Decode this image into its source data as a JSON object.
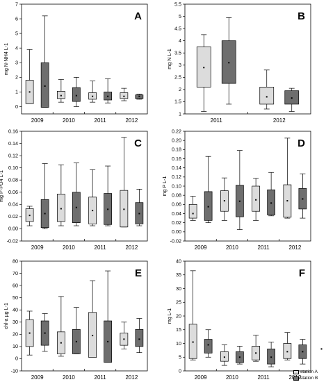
{
  "colors": {
    "station_A": "#dcdcdc",
    "station_B": "#6e6e6e",
    "frame": "#000000"
  },
  "legend": {
    "station_A": "station A",
    "station_B": "station B"
  },
  "chart_data": [
    {
      "type": "box",
      "panel": "A",
      "ylabel": "mg N-NH4 L-1",
      "ylim": [
        -0.5,
        7
      ],
      "yticks": [
        0,
        1,
        2,
        3,
        4,
        5,
        6,
        7
      ],
      "categories": [
        "2009",
        "2010",
        "2011",
        "2012"
      ],
      "series": [
        {
          "name": "station A",
          "boxes": [
            {
              "min": 0.2,
              "q1": 0.2,
              "median": 1.0,
              "q3": 1.8,
              "max": 3.9
            },
            {
              "min": 0.3,
              "q1": 0.55,
              "median": 0.75,
              "q3": 1.05,
              "max": 1.85
            },
            {
              "min": 0.3,
              "q1": 0.5,
              "median": 0.7,
              "q3": 0.95,
              "max": 1.75
            },
            {
              "min": 0.4,
              "q1": 0.55,
              "median": 0.7,
              "q3": 0.95,
              "max": 1.25
            }
          ]
        },
        {
          "name": "station B",
          "boxes": [
            {
              "min": -0.05,
              "q1": -0.05,
              "median": 1.4,
              "q3": 3.0,
              "max": 6.2
            },
            {
              "min": 0.0,
              "q1": 0.35,
              "median": 0.75,
              "q3": 1.3,
              "max": 2.0
            },
            {
              "min": 0.25,
              "q1": 0.45,
              "median": 0.7,
              "q3": 1.0,
              "max": 1.9
            },
            {
              "min": 0.5,
              "q1": 0.55,
              "median": 0.7,
              "q3": 0.8,
              "max": 0.85
            }
          ]
        }
      ]
    },
    {
      "type": "box",
      "panel": "B",
      "ylabel": "mg N L-1",
      "ylim": [
        1.0,
        5.5
      ],
      "yticks": [
        1.0,
        1.5,
        2.0,
        2.5,
        3.0,
        3.5,
        4.0,
        4.5,
        5.0,
        5.5
      ],
      "categories": [
        "2011",
        "2012"
      ],
      "series": [
        {
          "name": "station A",
          "boxes": [
            {
              "min": 1.1,
              "q1": 2.1,
              "median": 2.9,
              "q3": 3.75,
              "max": 4.25
            },
            {
              "min": 1.2,
              "q1": 1.4,
              "median": 1.7,
              "q3": 2.1,
              "max": 2.8
            }
          ]
        },
        {
          "name": "station B",
          "boxes": [
            {
              "min": 1.4,
              "q1": 2.25,
              "median": 3.1,
              "q3": 4.0,
              "max": 4.95
            },
            {
              "min": 1.1,
              "q1": 1.4,
              "median": 1.65,
              "q3": 1.95,
              "max": 2.05
            }
          ]
        }
      ]
    },
    {
      "type": "box",
      "panel": "C",
      "ylabel": "mg P-PO4 L-1",
      "ylim": [
        -0.02,
        0.16
      ],
      "yticks": [
        -0.02,
        0.0,
        0.02,
        0.04,
        0.06,
        0.08,
        0.1,
        0.12,
        0.14,
        0.16
      ],
      "ytick_labels": [
        "-0.02",
        "0.00",
        "0.02",
        "0.04",
        "0.06",
        "0.08",
        "0.10",
        "0.12",
        "0.14",
        "0.16"
      ],
      "categories": [
        "2009",
        "2010",
        "2011",
        "2012"
      ],
      "series": [
        {
          "name": "station A",
          "boxes": [
            {
              "min": 0.005,
              "q1": 0.012,
              "median": 0.022,
              "q3": 0.033,
              "max": 0.037
            },
            {
              "min": 0.005,
              "q1": 0.012,
              "median": 0.033,
              "q3": 0.057,
              "max": 0.105
            },
            {
              "min": 0.005,
              "q1": 0.008,
              "median": 0.03,
              "q3": 0.052,
              "max": 0.097
            },
            {
              "min": 0.003,
              "q1": 0.003,
              "median": 0.032,
              "q3": 0.063,
              "max": 0.15
            }
          ]
        },
        {
          "name": "station B",
          "boxes": [
            {
              "min": 0.0,
              "q1": 0.002,
              "median": 0.025,
              "q3": 0.048,
              "max": 0.107
            },
            {
              "min": 0.005,
              "q1": 0.01,
              "median": 0.035,
              "q3": 0.06,
              "max": 0.108
            },
            {
              "min": 0.005,
              "q1": 0.007,
              "median": 0.032,
              "q3": 0.058,
              "max": 0.103
            },
            {
              "min": 0.005,
              "q1": 0.008,
              "median": 0.025,
              "q3": 0.043,
              "max": 0.065
            }
          ]
        }
      ]
    },
    {
      "type": "box",
      "panel": "D",
      "ylabel": "mg P L-1",
      "ylim": [
        -0.02,
        0.22
      ],
      "yticks": [
        -0.02,
        0.0,
        0.02,
        0.04,
        0.06,
        0.08,
        0.1,
        0.12,
        0.14,
        0.16,
        0.18,
        0.2,
        0.22
      ],
      "ytick_labels": [
        "-0.02",
        "0.00",
        "0.02",
        "0.04",
        "0.06",
        "0.08",
        "0.10",
        "0.12",
        "0.14",
        "0.16",
        "0.18",
        "0.20",
        "0.22"
      ],
      "categories": [
        "2009",
        "2010",
        "2011",
        "2012"
      ],
      "series": [
        {
          "name": "station A",
          "boxes": [
            {
              "min": 0.025,
              "q1": 0.03,
              "median": 0.04,
              "q3": 0.06,
              "max": 0.078
            },
            {
              "min": 0.025,
              "q1": 0.045,
              "median": 0.068,
              "q3": 0.09,
              "max": 0.118
            },
            {
              "min": 0.025,
              "q1": 0.045,
              "median": 0.07,
              "q3": 0.1,
              "max": 0.117
            },
            {
              "min": 0.03,
              "q1": 0.032,
              "median": 0.068,
              "q3": 0.103,
              "max": 0.205
            }
          ]
        },
        {
          "name": "station B",
          "boxes": [
            {
              "min": 0.02,
              "q1": 0.025,
              "median": 0.055,
              "q3": 0.088,
              "max": 0.165
            },
            {
              "min": 0.005,
              "q1": 0.033,
              "median": 0.067,
              "q3": 0.102,
              "max": 0.178
            },
            {
              "min": 0.035,
              "q1": 0.037,
              "median": 0.063,
              "q3": 0.092,
              "max": 0.13
            },
            {
              "min": 0.03,
              "q1": 0.05,
              "median": 0.072,
              "q3": 0.095,
              "max": 0.127
            }
          ]
        }
      ]
    },
    {
      "type": "box",
      "panel": "E",
      "ylabel": "chl-a µg L-1",
      "ylim": [
        -10,
        80
      ],
      "yticks": [
        -10,
        0,
        10,
        20,
        30,
        40,
        50,
        60,
        70,
        80
      ],
      "categories": [
        "2009",
        "2010",
        "2011",
        "2012"
      ],
      "series": [
        {
          "name": "station A",
          "boxes": [
            {
              "min": 3,
              "q1": 10,
              "median": 21,
              "q3": 32,
              "max": 39
            },
            {
              "min": 2,
              "q1": 4,
              "median": 13,
              "q3": 22,
              "max": 51
            },
            {
              "min": 1,
              "q1": 1,
              "median": 19,
              "q3": 38,
              "max": 64
            },
            {
              "min": 8,
              "q1": 11,
              "median": 16,
              "q3": 21,
              "max": 30
            }
          ]
        },
        {
          "name": "station B",
          "boxes": [
            {
              "min": 6,
              "q1": 11,
              "median": 21,
              "q3": 31,
              "max": 37
            },
            {
              "min": 4,
              "q1": 4,
              "median": 14,
              "q3": 24,
              "max": 42
            },
            {
              "min": -3,
              "q1": -3,
              "median": 14,
              "q3": 31,
              "max": 72
            },
            {
              "min": 5,
              "q1": 10,
              "median": 16,
              "q3": 24,
              "max": 33
            }
          ]
        }
      ]
    },
    {
      "type": "box",
      "panel": "F",
      "ylabel": "mg L-1",
      "ylim": [
        0,
        40
      ],
      "yticks": [
        0,
        5,
        10,
        15,
        20,
        25,
        30,
        35,
        40
      ],
      "categories": [
        "2009",
        "2010",
        "2011",
        "2012"
      ],
      "series": [
        {
          "name": "station A",
          "boxes": [
            {
              "min": 4,
              "q1": 4.5,
              "median": 10.5,
              "q3": 17,
              "max": 36.5
            },
            {
              "min": 2,
              "q1": 3.5,
              "median": 5,
              "q3": 7,
              "max": 9.5
            },
            {
              "min": 3.5,
              "q1": 4,
              "median": 6.5,
              "q3": 9,
              "max": 13
            },
            {
              "min": 4,
              "q1": 4.5,
              "median": 7,
              "q3": 10,
              "max": 14
            }
          ]
        },
        {
          "name": "station B",
          "boxes": [
            {
              "min": 5,
              "q1": 6.5,
              "median": 9.5,
              "q3": 11.5,
              "max": 15
            },
            {
              "min": 2.5,
              "q1": 3,
              "median": 5,
              "q3": 7,
              "max": 9
            },
            {
              "min": 1.5,
              "q1": 2.5,
              "median": 5,
              "q3": 8,
              "max": 10.5
            },
            {
              "min": 2.5,
              "q1": 4.5,
              "median": 7,
              "q3": 9.5,
              "max": 11.5
            }
          ]
        }
      ],
      "outliers": [
        {
          "category": "2012",
          "x_offset": 1,
          "y": 8
        }
      ]
    }
  ]
}
